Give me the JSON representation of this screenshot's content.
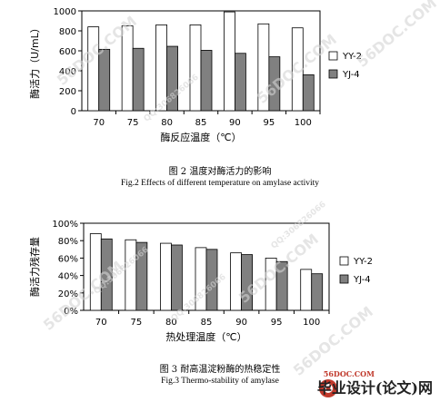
{
  "chart_data": [
    {
      "type": "bar",
      "categories": [
        "70",
        "75",
        "80",
        "85",
        "90",
        "95",
        "100"
      ],
      "series": [
        {
          "name": "YY-2",
          "values": [
            840,
            850,
            860,
            860,
            990,
            870,
            830
          ]
        },
        {
          "name": "YJ-4",
          "values": [
            615,
            625,
            645,
            605,
            575,
            540,
            360
          ]
        }
      ],
      "ylim": [
        0,
        1000
      ],
      "yticks": [
        "0",
        "200",
        "400",
        "600",
        "800",
        "1000"
      ],
      "xlabel": "酶反应温度（℃）",
      "ylabel": "酶活力（U/mL）",
      "legend": "right",
      "caption_cn": "图 2   温度对酶活力的影响",
      "caption_en": "Fig.2    Effects of different temperature on amylase activity",
      "colors": {
        "YY-2": "#ffffff",
        "YJ-4": "#808080"
      }
    },
    {
      "type": "bar",
      "categories": [
        "70",
        "75",
        "80",
        "85",
        "90",
        "95",
        "100"
      ],
      "series": [
        {
          "name": "YY-2",
          "values": [
            88,
            81,
            77,
            72,
            66,
            60,
            47
          ]
        },
        {
          "name": "YJ-4",
          "values": [
            82,
            78,
            75,
            70,
            64,
            56,
            42
          ]
        }
      ],
      "ylim": [
        0,
        100
      ],
      "yticks": [
        "0%",
        "20%",
        "40%",
        "60%",
        "80%",
        "100%"
      ],
      "xlabel": "热处理温度（℃）",
      "ylabel": "酶活力残存量",
      "legend": "right",
      "caption_cn": "图 3   耐高温淀粉酶的热稳定性",
      "caption_en": "Fig.3    Thermo-stability of amylase",
      "colors": {
        "YY-2": "#ffffff",
        "YJ-4": "#808080"
      }
    }
  ],
  "watermarks": [
    "56DOC.COM",
    "56DOC.COM",
    "56DOC.COM",
    "56DOC.COM",
    "56DOC.COM",
    "56DOC.COM",
    "QQ:306826066",
    "QQ:306826066",
    "QQ:306826066",
    "QQ:306826066"
  ],
  "brand": {
    "url": "56DOC.COM",
    "name": "毕业设计(论文)网"
  }
}
